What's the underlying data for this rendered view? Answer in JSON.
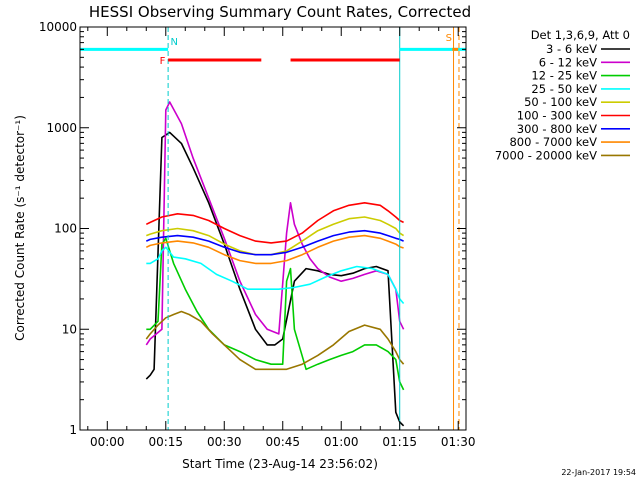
{
  "chart_data": {
    "type": "line",
    "title": "HESSI Observing Summary Count Rates, Corrected",
    "xlabel": "Start Time (23-Aug-14 23:56:02)",
    "ylabel": "Corrected Count Rate (s⁻¹ detector⁻¹)",
    "yscale": "log",
    "ylim": [
      1,
      10000
    ],
    "xlim_minutes": [
      -3,
      96
    ],
    "x_ticks": [
      {
        "label": "00:00",
        "minute": 4
      },
      {
        "label": "00:15",
        "minute": 19
      },
      {
        "label": "00:30",
        "minute": 34
      },
      {
        "label": "00:45",
        "minute": 49
      },
      {
        "label": "01:00",
        "minute": 64
      },
      {
        "label": "01:15",
        "minute": 79
      },
      {
        "label": "01:30",
        "minute": 94
      }
    ],
    "y_ticks": [
      {
        "label": "1",
        "value": 1
      },
      {
        "label": "10",
        "value": 10
      },
      {
        "label": "100",
        "value": 100
      },
      {
        "label": "1000",
        "value": 1000
      },
      {
        "label": "10000",
        "value": 10000
      }
    ],
    "legend_header": "Det 1,3,6,9, Att 0",
    "legend_position": "right",
    "series": [
      {
        "name": "3 - 6 keV",
        "color": "#000000",
        "x": [
          14,
          15,
          16,
          18,
          20,
          23,
          26,
          30,
          34,
          38,
          42,
          45,
          47,
          49,
          52,
          55,
          58,
          61,
          64,
          67,
          70,
          73,
          76,
          78,
          79,
          80
        ],
        "y": [
          3.2,
          3.5,
          4,
          800,
          900,
          700,
          400,
          180,
          70,
          25,
          10,
          7,
          7,
          8,
          30,
          40,
          38,
          35,
          34,
          36,
          40,
          42,
          38,
          1.5,
          1.2,
          1.1
        ]
      },
      {
        "name": "6 - 12 keV",
        "color": "#cc00cc",
        "x": [
          14,
          15,
          18,
          19,
          20,
          23,
          26,
          30,
          34,
          38,
          42,
          45,
          48,
          50,
          51,
          52,
          54,
          56,
          58,
          61,
          64,
          67,
          70,
          73,
          76,
          78,
          79,
          80
        ],
        "y": [
          7,
          8,
          10,
          1500,
          1800,
          1100,
          500,
          200,
          80,
          30,
          14,
          10,
          9,
          90,
          180,
          110,
          70,
          50,
          40,
          33,
          30,
          32,
          35,
          38,
          35,
          25,
          12,
          10
        ]
      },
      {
        "name": "12 - 25 keV",
        "color": "#00cc00",
        "x": [
          14,
          15,
          17,
          18,
          19,
          21,
          24,
          27,
          30,
          34,
          38,
          42,
          46,
          49,
          50,
          51,
          52,
          55,
          58,
          61,
          64,
          67,
          70,
          73,
          76,
          78,
          79,
          80
        ],
        "y": [
          10,
          10,
          12,
          70,
          80,
          45,
          25,
          15,
          10,
          7,
          6,
          5,
          4.5,
          4.5,
          30,
          40,
          10,
          4,
          4.5,
          5,
          5.5,
          6,
          7,
          7,
          6,
          5,
          3,
          2.5
        ]
      },
      {
        "name": "25 - 50 keV",
        "color": "#00ffff",
        "x": [
          14,
          15,
          17,
          18,
          19,
          21,
          24,
          28,
          32,
          36,
          40,
          44,
          48,
          52,
          56,
          60,
          64,
          68,
          72,
          76,
          78,
          79,
          80
        ],
        "y": [
          45,
          45,
          50,
          60,
          65,
          52,
          50,
          45,
          35,
          30,
          25,
          25,
          25,
          26,
          28,
          33,
          38,
          42,
          40,
          35,
          25,
          20,
          18
        ]
      },
      {
        "name": "50 - 100 keV",
        "color": "#cccc00",
        "x": [
          14,
          15,
          18,
          22,
          26,
          30,
          34,
          38,
          42,
          46,
          50,
          54,
          58,
          62,
          66,
          70,
          74,
          76,
          78,
          79,
          80
        ],
        "y": [
          85,
          88,
          95,
          100,
          95,
          85,
          70,
          60,
          55,
          55,
          60,
          75,
          95,
          110,
          125,
          130,
          120,
          110,
          100,
          90,
          85
        ]
      },
      {
        "name": "100 - 300 keV",
        "color": "#ff0000",
        "x": [
          14,
          15,
          18,
          22,
          26,
          30,
          34,
          38,
          42,
          46,
          50,
          54,
          58,
          62,
          66,
          70,
          74,
          76,
          78,
          79,
          80
        ],
        "y": [
          110,
          115,
          130,
          140,
          135,
          120,
          100,
          85,
          75,
          72,
          75,
          90,
          120,
          150,
          170,
          180,
          170,
          150,
          130,
          120,
          115
        ]
      },
      {
        "name": "300 - 800 keV",
        "color": "#0000ff",
        "x": [
          14,
          15,
          18,
          22,
          26,
          30,
          34,
          38,
          42,
          46,
          50,
          54,
          58,
          62,
          66,
          70,
          74,
          76,
          78,
          79,
          80
        ],
        "y": [
          75,
          78,
          82,
          85,
          82,
          75,
          65,
          58,
          55,
          55,
          58,
          65,
          75,
          85,
          92,
          95,
          90,
          85,
          80,
          78,
          75
        ]
      },
      {
        "name": "800 - 7000 keV",
        "color": "#ff8800",
        "x": [
          14,
          15,
          18,
          22,
          26,
          30,
          34,
          38,
          42,
          46,
          50,
          54,
          58,
          62,
          66,
          70,
          74,
          76,
          78,
          79,
          80
        ],
        "y": [
          65,
          68,
          72,
          75,
          72,
          65,
          55,
          48,
          45,
          45,
          48,
          55,
          65,
          75,
          82,
          85,
          80,
          75,
          70,
          66,
          64
        ]
      },
      {
        "name": "7000 - 20000 keV",
        "color": "#997700",
        "x": [
          14,
          15,
          17,
          19,
          21,
          23,
          25,
          28,
          31,
          34,
          38,
          42,
          46,
          50,
          54,
          58,
          62,
          66,
          70,
          74,
          76,
          78,
          79,
          80
        ],
        "y": [
          8,
          9,
          11,
          13,
          14,
          15,
          14,
          12,
          9,
          7,
          5,
          4,
          4,
          4,
          4.5,
          5.5,
          7,
          9.5,
          11,
          10,
          8,
          6,
          5,
          4.5
        ]
      }
    ],
    "annotations": [
      {
        "text": "N",
        "color": "#00cccc"
      },
      {
        "text": "F",
        "color": "#ff0000"
      },
      {
        "text": "S",
        "color": "#ff8800"
      }
    ],
    "flag_bars": [
      {
        "name": "night",
        "color": "#00ffff",
        "y": 6000,
        "segments": [
          [
            -3,
            19.6
          ],
          [
            79,
            96
          ]
        ]
      },
      {
        "name": "flare",
        "color": "#ff0000",
        "y": 4700,
        "segments": [
          [
            19.6,
            43.5
          ],
          [
            51,
            79
          ]
        ]
      },
      {
        "name": "saa",
        "color": "#ff8800",
        "y": 6000,
        "segments": [
          [
            92.5,
            94
          ]
        ]
      }
    ],
    "vertical_markers": [
      {
        "minute": 19.6,
        "color": "#00cccc",
        "style": "dashed"
      },
      {
        "minute": 79,
        "color": "#00cccc",
        "style": "solid"
      },
      {
        "minute": 92.8,
        "color": "#ff8800",
        "style": "solid"
      },
      {
        "minute": 94.2,
        "color": "#ff8800",
        "style": "dashed"
      }
    ],
    "grid": false
  },
  "footer_timestamp": "22-Jan-2017 19:54"
}
